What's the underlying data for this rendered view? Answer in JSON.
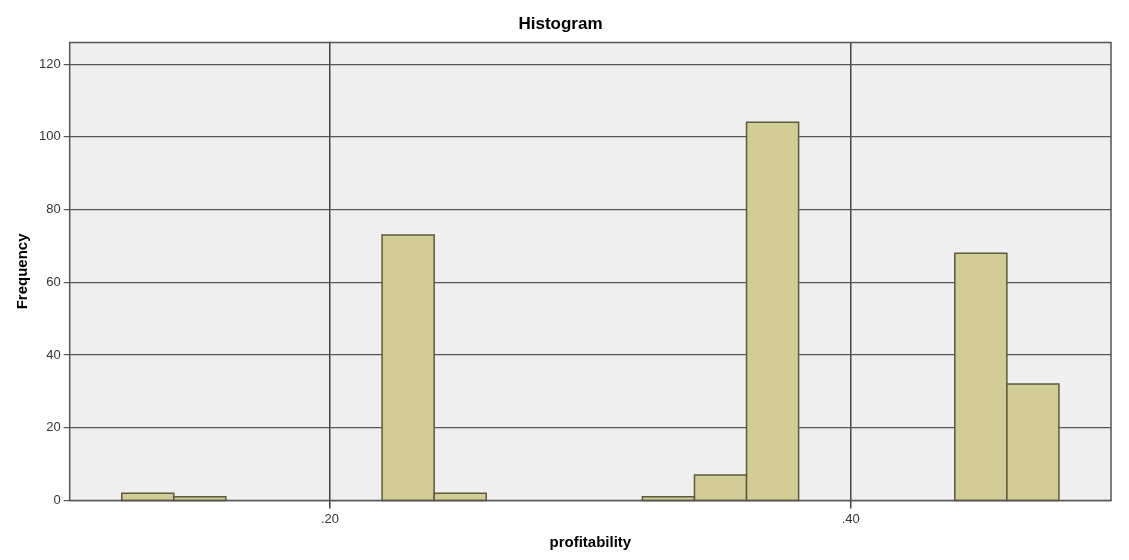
{
  "chart_data": {
    "type": "histogram",
    "title": "Histogram",
    "xlabel": "profitability",
    "ylabel": "Frequency",
    "bins": [
      0.12,
      0.14,
      0.16,
      0.18,
      0.2,
      0.22,
      0.24,
      0.26,
      0.28,
      0.3,
      0.32,
      0.34,
      0.36,
      0.38,
      0.4,
      0.42,
      0.44,
      0.46,
      0.48
    ],
    "values": [
      2,
      1,
      0,
      0,
      0,
      73,
      2,
      0,
      0,
      0,
      1,
      7,
      104,
      0,
      0,
      0,
      68,
      32
    ],
    "color": "#d2cd96",
    "xlim": [
      0.1,
      0.5
    ],
    "xticks": [
      {
        "value": 0.2,
        "label": ".20"
      },
      {
        "value": 0.4,
        "label": ".40"
      }
    ],
    "ylim": [
      0,
      126
    ],
    "yticks": [
      0,
      20,
      40,
      60,
      80,
      100,
      120
    ],
    "grid": true
  }
}
